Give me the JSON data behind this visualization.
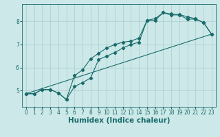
{
  "title": "",
  "xlabel": "Humidex (Indice chaleur)",
  "ylabel": "",
  "background_color": "#cce8e8",
  "grid_color": "#aacccc",
  "line_color": "#1a6b6b",
  "xlim": [
    -0.5,
    23.5
  ],
  "ylim": [
    4.3,
    8.75
  ],
  "xticks": [
    0,
    1,
    2,
    3,
    4,
    5,
    6,
    7,
    8,
    9,
    10,
    11,
    12,
    13,
    14,
    15,
    16,
    17,
    18,
    19,
    20,
    21,
    22,
    23
  ],
  "yticks": [
    5,
    6,
    7,
    8
  ],
  "line1_x": [
    0,
    1,
    2,
    3,
    4,
    5,
    6,
    7,
    8,
    9,
    10,
    11,
    12,
    13,
    14,
    15,
    16,
    17,
    18,
    19,
    20,
    21,
    22,
    23
  ],
  "line1_y": [
    4.87,
    4.87,
    5.05,
    5.05,
    4.9,
    4.62,
    5.18,
    5.35,
    5.55,
    6.35,
    6.5,
    6.65,
    6.85,
    7.0,
    7.1,
    8.05,
    8.05,
    8.38,
    8.28,
    8.28,
    8.1,
    8.1,
    7.95,
    7.45
  ],
  "line2_x": [
    0,
    1,
    2,
    3,
    4,
    5,
    6,
    7,
    8,
    9,
    10,
    11,
    12,
    13,
    14,
    15,
    16,
    17,
    18,
    19,
    20,
    21,
    22,
    23
  ],
  "line2_y": [
    4.87,
    4.87,
    5.05,
    5.05,
    4.9,
    4.62,
    5.65,
    5.9,
    6.38,
    6.62,
    6.85,
    7.0,
    7.1,
    7.15,
    7.28,
    8.05,
    8.12,
    8.38,
    8.32,
    8.3,
    8.2,
    8.12,
    7.95,
    7.45
  ],
  "line3_x": [
    0,
    23
  ],
  "line3_y": [
    4.87,
    7.45
  ],
  "figsize": [
    3.2,
    2.0
  ],
  "dpi": 100,
  "tick_fontsize": 5.5,
  "xlabel_fontsize": 7.5
}
